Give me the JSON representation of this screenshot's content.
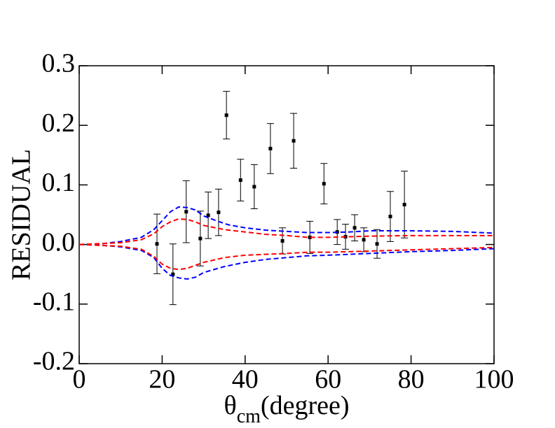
{
  "chart_data": {
    "type": "line",
    "y_label": "RESIDUAL",
    "x_label": {
      "symbol": "θ",
      "subscript": "cm",
      "text": "(degree)"
    },
    "xlim": [
      0,
      100
    ],
    "xticks": [
      0,
      20,
      40,
      60,
      80,
      100
    ],
    "ylim": [
      -0.2,
      0.3
    ],
    "yticks": [
      0.3,
      0.2,
      0.1,
      {
        "value": 0,
        "label": "0.0"
      },
      -0.1,
      -0.2
    ],
    "series": [
      {
        "type": "errorbar",
        "color": "#000000",
        "x": [
          18.75,
          22.6,
          25.8,
          29.2,
          31.1,
          33.6,
          35.5,
          38.9,
          42.2,
          46.1,
          49.0,
          51.7,
          55.6,
          59.0,
          62.2,
          64.2,
          66.4,
          68.6,
          71.8,
          75.0,
          78.4
        ],
        "values": [
          0.001,
          -0.05,
          0.055,
          0.01,
          0.049,
          0.054,
          0.217,
          0.108,
          0.097,
          0.161,
          0.006,
          0.174,
          0.012,
          0.102,
          0.021,
          0.013,
          0.028,
          0.008,
          0.001,
          0.047,
          0.067
        ],
        "errors": [
          0.05,
          0.051,
          0.052,
          0.046,
          0.039,
          0.039,
          0.04,
          0.035,
          0.037,
          0.042,
          0.022,
          0.046,
          0.027,
          0.034,
          0.021,
          0.021,
          0.022,
          0.02,
          0.024,
          0.042,
          0.056
        ]
      },
      {
        "type": "line",
        "color": "#0000ff",
        "dash": "7,4",
        "x": [
          0,
          5,
          10,
          15,
          18,
          20,
          22,
          24,
          26,
          28,
          30,
          33,
          36,
          40,
          45,
          50,
          55,
          60,
          65,
          70,
          80,
          90,
          100
        ],
        "values": [
          0,
          0.001,
          0.005,
          0.012,
          0.025,
          0.04,
          0.055,
          0.063,
          0.062,
          0.058,
          0.048,
          0.04,
          0.033,
          0.028,
          0.024,
          0.022,
          0.02,
          0.02,
          0.021,
          0.023,
          0.023,
          0.022,
          0.019
        ]
      },
      {
        "type": "line",
        "color": "#0000ff",
        "dash": "7,4",
        "x": [
          0,
          5,
          10,
          15,
          18,
          20,
          22,
          24,
          26,
          28,
          30,
          35,
          40,
          45,
          50,
          55,
          60,
          70,
          80,
          90,
          100
        ],
        "values": [
          0,
          -0.001,
          -0.004,
          -0.01,
          -0.022,
          -0.04,
          -0.052,
          -0.056,
          -0.058,
          -0.055,
          -0.047,
          -0.037,
          -0.03,
          -0.025,
          -0.022,
          -0.019,
          -0.018,
          -0.015,
          -0.012,
          -0.01,
          -0.007
        ]
      },
      {
        "type": "line",
        "color": "#ff0000",
        "dash": "7,4",
        "x": [
          0,
          10,
          15,
          18,
          20,
          22,
          24,
          26,
          28,
          30,
          35,
          40,
          45,
          50,
          55,
          60,
          70,
          80,
          90,
          100
        ],
        "values": [
          0,
          0.003,
          0.008,
          0.018,
          0.03,
          0.038,
          0.043,
          0.042,
          0.038,
          0.032,
          0.025,
          0.021,
          0.017,
          0.015,
          0.012,
          0.012,
          0.014,
          0.015,
          0.015,
          0.015
        ]
      },
      {
        "type": "line",
        "color": "#ff0000",
        "dash": "7,4",
        "x": [
          0,
          10,
          15,
          18,
          20,
          22,
          24,
          26,
          28,
          30,
          35,
          40,
          50,
          55,
          60,
          70,
          80,
          90,
          100
        ],
        "values": [
          0,
          -0.003,
          -0.008,
          -0.02,
          -0.033,
          -0.04,
          -0.042,
          -0.04,
          -0.035,
          -0.03,
          -0.022,
          -0.018,
          -0.015,
          -0.013,
          -0.013,
          -0.011,
          -0.009,
          -0.007,
          -0.005
        ]
      }
    ]
  }
}
